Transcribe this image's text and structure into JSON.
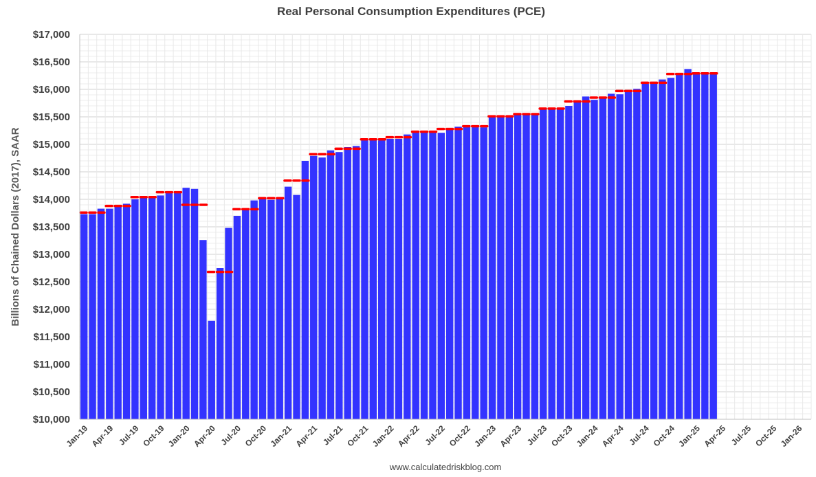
{
  "chart_data": {
    "type": "bar",
    "title": "Real Personal Consumption Expenditures (PCE)",
    "ylabel": "Billions of Chained Dollars (2017), SAAR",
    "source": "www.calculatedriskblog.com",
    "ylim": [
      10000,
      17000
    ],
    "y_ticks": [
      10000,
      10500,
      11000,
      11500,
      12000,
      12500,
      13000,
      13500,
      14000,
      14500,
      15000,
      15500,
      16000,
      16500,
      17000
    ],
    "y_tick_labels": [
      "$10,000",
      "$10,500",
      "$11,000",
      "$11,500",
      "$12,000",
      "$12,500",
      "$13,000",
      "$13,500",
      "$14,000",
      "$14,500",
      "$15,000",
      "$15,500",
      "$16,000",
      "$16,500",
      "$17,000"
    ],
    "x_tick_labels": [
      "Jan-19",
      "Apr-19",
      "Jul-19",
      "Oct-19",
      "Jan-20",
      "Apr-20",
      "Jul-20",
      "Oct-20",
      "Jan-21",
      "Apr-21",
      "Jul-21",
      "Oct-21",
      "Jan-22",
      "Apr-22",
      "Jul-22",
      "Oct-22",
      "Jan-23",
      "Apr-23",
      "Jul-23",
      "Oct-23",
      "Jan-24",
      "Apr-24",
      "Jul-24",
      "Oct-24",
      "Jan-25",
      "Apr-25",
      "Jul-25",
      "Oct-25",
      "Jan-26"
    ],
    "months": [
      "Jan-19",
      "Feb-19",
      "Mar-19",
      "Apr-19",
      "May-19",
      "Jun-19",
      "Jul-19",
      "Aug-19",
      "Sep-19",
      "Oct-19",
      "Nov-19",
      "Dec-19",
      "Jan-20",
      "Feb-20",
      "Mar-20",
      "Apr-20",
      "May-20",
      "Jun-20",
      "Jul-20",
      "Aug-20",
      "Sep-20",
      "Oct-20",
      "Nov-20",
      "Dec-20",
      "Jan-21",
      "Feb-21",
      "Mar-21",
      "Apr-21",
      "May-21",
      "Jun-21",
      "Jul-21",
      "Aug-21",
      "Sep-21",
      "Oct-21",
      "Nov-21",
      "Dec-21",
      "Jan-22",
      "Feb-22",
      "Mar-22",
      "Apr-22",
      "May-22",
      "Jun-22",
      "Jul-22",
      "Aug-22",
      "Sep-22",
      "Oct-22",
      "Nov-22",
      "Dec-22",
      "Jan-23",
      "Feb-23",
      "Mar-23",
      "Apr-23",
      "May-23",
      "Jun-23",
      "Jul-23",
      "Aug-23",
      "Sep-23",
      "Oct-23",
      "Nov-23",
      "Dec-23",
      "Jan-24",
      "Feb-24",
      "Mar-24",
      "Apr-24",
      "May-24",
      "Jun-24",
      "Jul-24",
      "Aug-24",
      "Sep-24",
      "Oct-24",
      "Nov-24",
      "Dec-24",
      "Jan-25",
      "Feb-25",
      "Mar-25"
    ],
    "series": [
      {
        "kind": "bar",
        "color": "#3333ff",
        "values": [
          13730,
          13730,
          13830,
          13830,
          13870,
          13920,
          14000,
          14040,
          14040,
          14070,
          14130,
          14150,
          14210,
          14190,
          13260,
          11790,
          12750,
          13480,
          13700,
          13800,
          13980,
          14020,
          13990,
          14020,
          14230,
          14080,
          14700,
          14790,
          14760,
          14890,
          14860,
          14950,
          14970,
          15090,
          15100,
          15070,
          15100,
          15100,
          15180,
          15250,
          15220,
          15220,
          15210,
          15300,
          15320,
          15350,
          15330,
          15310,
          15530,
          15520,
          15490,
          15540,
          15560,
          15560,
          15640,
          15640,
          15660,
          15700,
          15780,
          15870,
          15810,
          15860,
          15920,
          15910,
          15980,
          16010,
          16100,
          16100,
          16180,
          16210,
          16270,
          16370,
          16300,
          16280,
          16290
        ]
      },
      {
        "kind": "quarterly-average",
        "color": "#ff0000",
        "values": [
          13760,
          13880,
          14040,
          14130,
          13900,
          12680,
          13820,
          14020,
          14340,
          14820,
          14920,
          15090,
          15130,
          15230,
          15280,
          15330,
          15510,
          15550,
          15650,
          15780,
          15850,
          15970,
          16120,
          16280,
          16290
        ]
      }
    ],
    "grid": true,
    "legend": "none"
  }
}
